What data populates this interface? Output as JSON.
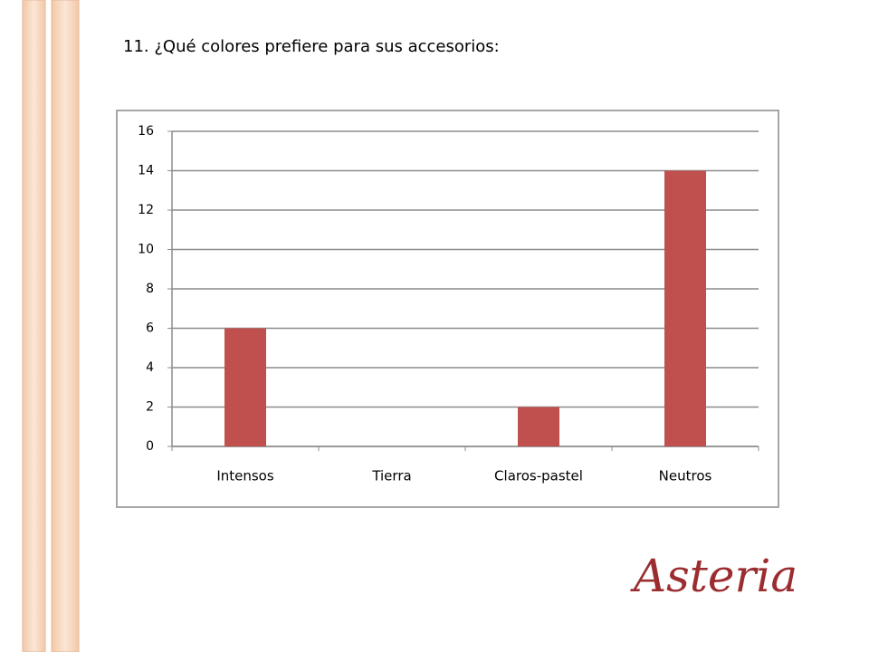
{
  "chart_data": {
    "type": "bar",
    "title": "11. ¿Qué colores prefiere para sus accesorios:",
    "categories": [
      "Intensos",
      "Tierra",
      "Claros-pastel",
      "Neutros"
    ],
    "values": [
      6,
      0,
      2,
      14
    ],
    "color": "#c0504d",
    "ylim": [
      0,
      16
    ],
    "yticks": [
      0,
      2,
      4,
      6,
      8,
      10,
      12,
      14,
      16
    ],
    "grid": true
  },
  "logo": "Asteria"
}
